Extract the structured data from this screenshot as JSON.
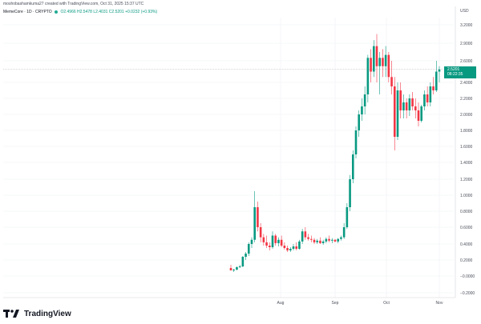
{
  "header": {
    "published_text": "moshobashamkuma27 created with TradingView.com, Oct 31, 2025 15:37 UTC",
    "currency": "USD",
    "symbol": "MemeCore · 1D · CRYPTO",
    "ohlc_prefix": "O",
    "open": "2.4966",
    "high": "H2.5478",
    "low": "L2.4031",
    "close": "C2.5201",
    "change": "+0.0232 (+0.93%)"
  },
  "badge": {
    "price": "2.5201",
    "countdown": "08:22:35"
  },
  "brand": {
    "logo_icon": "tradingview-logo-icon",
    "name": "TradingView"
  },
  "colors": {
    "up": "#089981",
    "down": "#f23645",
    "grid": "#eef0f3",
    "axis_text": "#4a4e5a"
  },
  "chart_data": {
    "type": "candlestick",
    "y_ticks": [
      "3.2000",
      "2.9000",
      "2.6000",
      "2.4000",
      "2.2000",
      "2.0000",
      "1.8000",
      "1.6000",
      "1.4000",
      "1.2000",
      "1.0000",
      "0.8000",
      "0.6000",
      "0.4000",
      "0.2000",
      "−0.0000",
      "−0.2000"
    ],
    "x_ticks": [
      {
        "label": "Aug",
        "day": 48
      },
      {
        "label": "Sep",
        "day": 79
      },
      {
        "label": "Oct",
        "day": 109
      },
      {
        "label": "Nov",
        "day": 140
      }
    ],
    "ylim": [
      -0.2,
      3.3
    ],
    "grid": true,
    "last_price": 2.5201,
    "candles": [
      [
        0.1,
        0.14,
        0.07,
        0.07
      ],
      [
        0.07,
        0.09,
        0.05,
        0.08
      ],
      [
        0.08,
        0.12,
        0.07,
        0.11
      ],
      [
        0.11,
        0.14,
        0.1,
        0.12
      ],
      [
        0.12,
        0.25,
        0.11,
        0.24
      ],
      [
        0.24,
        0.3,
        0.2,
        0.28
      ],
      [
        0.28,
        0.42,
        0.25,
        0.4
      ],
      [
        0.4,
        0.48,
        0.35,
        0.45
      ],
      [
        0.45,
        1.05,
        0.42,
        0.85
      ],
      [
        0.85,
        0.92,
        0.55,
        0.6
      ],
      [
        0.6,
        0.65,
        0.42,
        0.48
      ],
      [
        0.48,
        0.52,
        0.38,
        0.42
      ],
      [
        0.42,
        0.5,
        0.35,
        0.38
      ],
      [
        0.38,
        0.42,
        0.32,
        0.36
      ],
      [
        0.36,
        0.55,
        0.34,
        0.5
      ],
      [
        0.5,
        0.52,
        0.38,
        0.41
      ],
      [
        0.41,
        0.48,
        0.37,
        0.45
      ],
      [
        0.45,
        0.5,
        0.36,
        0.38
      ],
      [
        0.38,
        0.42,
        0.33,
        0.35
      ],
      [
        0.35,
        0.38,
        0.3,
        0.32
      ],
      [
        0.32,
        0.36,
        0.3,
        0.34
      ],
      [
        0.34,
        0.4,
        0.32,
        0.37
      ],
      [
        0.37,
        0.42,
        0.32,
        0.34
      ],
      [
        0.34,
        0.45,
        0.33,
        0.43
      ],
      [
        0.43,
        0.58,
        0.4,
        0.55
      ],
      [
        0.55,
        0.6,
        0.45,
        0.48
      ],
      [
        0.48,
        0.52,
        0.44,
        0.46
      ],
      [
        0.46,
        0.5,
        0.42,
        0.45
      ],
      [
        0.45,
        0.47,
        0.4,
        0.42
      ],
      [
        0.42,
        0.46,
        0.4,
        0.44
      ],
      [
        0.44,
        0.48,
        0.4,
        0.41
      ],
      [
        0.41,
        0.45,
        0.39,
        0.43
      ],
      [
        0.43,
        0.48,
        0.41,
        0.46
      ],
      [
        0.46,
        0.5,
        0.42,
        0.44
      ],
      [
        0.44,
        0.47,
        0.41,
        0.45
      ],
      [
        0.45,
        0.46,
        0.42,
        0.43
      ],
      [
        0.43,
        0.47,
        0.41,
        0.46
      ],
      [
        0.46,
        0.5,
        0.44,
        0.48
      ],
      [
        0.48,
        0.65,
        0.46,
        0.6
      ],
      [
        0.6,
        0.9,
        0.58,
        0.85
      ],
      [
        0.85,
        1.25,
        0.8,
        1.2
      ],
      [
        1.2,
        1.55,
        1.15,
        1.5
      ],
      [
        1.5,
        1.85,
        1.45,
        1.8
      ],
      [
        1.8,
        2.05,
        1.72,
        2.0
      ],
      [
        2.0,
        2.2,
        1.92,
        2.1
      ],
      [
        2.1,
        2.35,
        2.0,
        2.25
      ],
      [
        2.25,
        2.7,
        2.15,
        2.65
      ],
      [
        2.65,
        2.8,
        2.4,
        2.5
      ],
      [
        2.5,
        2.95,
        2.45,
        2.85
      ],
      [
        2.85,
        3.05,
        2.4,
        2.55
      ],
      [
        2.55,
        2.75,
        2.25,
        2.65
      ],
      [
        2.65,
        2.8,
        2.45,
        2.55
      ],
      [
        2.55,
        2.85,
        2.45,
        2.7
      ],
      [
        2.7,
        2.75,
        2.4,
        2.45
      ],
      [
        2.45,
        2.6,
        2.25,
        2.35
      ],
      [
        2.35,
        2.45,
        1.55,
        1.72
      ],
      [
        1.72,
        2.4,
        1.68,
        2.3
      ],
      [
        2.3,
        2.4,
        1.95,
        2.05
      ],
      [
        2.05,
        2.25,
        1.95,
        2.15
      ],
      [
        2.15,
        2.2,
        1.95,
        2.05
      ],
      [
        2.05,
        2.25,
        1.98,
        2.2
      ],
      [
        2.2,
        2.28,
        2.05,
        2.1
      ],
      [
        2.1,
        2.2,
        1.95,
        2.05
      ],
      [
        2.05,
        2.15,
        1.85,
        1.92
      ],
      [
        1.92,
        2.12,
        1.9,
        2.1
      ],
      [
        2.1,
        2.3,
        2.05,
        2.25
      ],
      [
        2.25,
        2.35,
        2.1,
        2.15
      ],
      [
        2.15,
        2.4,
        2.1,
        2.35
      ],
      [
        2.35,
        2.45,
        2.25,
        2.3
      ],
      [
        2.3,
        2.6,
        2.28,
        2.5
      ],
      [
        2.5,
        2.55,
        2.4,
        2.52
      ]
    ]
  }
}
